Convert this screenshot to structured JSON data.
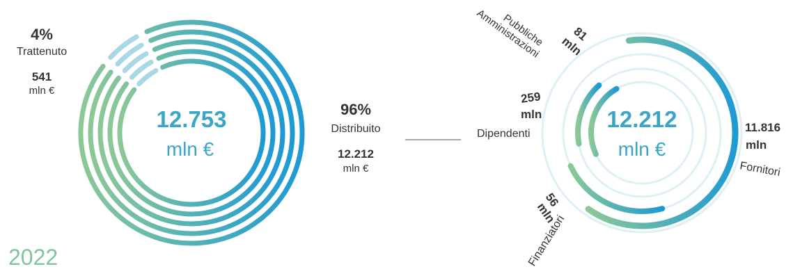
{
  "colors": {
    "start": "#8cc897",
    "end": "#1e9ad3",
    "retained": "#a8d8e6",
    "track": "#dcf0f6",
    "text": "#333333"
  },
  "year": "2022",
  "chart_data": [
    {
      "type": "pie",
      "subtype": "concentric-ring",
      "center_value": "12.753",
      "center_unit": "mln €",
      "slices": [
        {
          "name": "Trattenuto",
          "percent": "4%",
          "value": 541,
          "value_label": "541",
          "unit": "mln €"
        },
        {
          "name": "Distribuito",
          "percent": "96%",
          "value": 12212,
          "value_label": "12.212",
          "unit": "mln €"
        }
      ]
    },
    {
      "type": "pie",
      "subtype": "radial-bar",
      "center_value": "12.212",
      "center_unit": "mln €",
      "unit_label": "mln",
      "categories": [
        "Fornitori",
        "Dipendenti",
        "Pubbliche Amministrazioni",
        "Finanziatori"
      ],
      "values": [
        11816,
        259,
        81,
        56
      ],
      "value_labels": [
        "11.816",
        "259",
        "81",
        "56"
      ]
    }
  ]
}
